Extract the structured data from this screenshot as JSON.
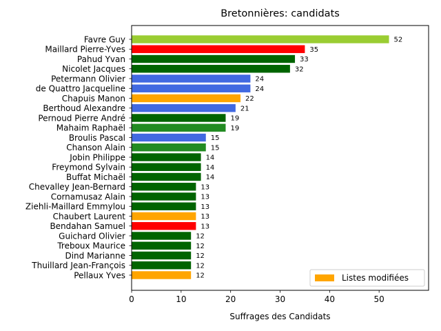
{
  "chart_data": {
    "type": "bar",
    "orientation": "horizontal",
    "title": "Bretonnières: candidats",
    "xlabel": "Suffrages des Candidats",
    "ylabel": "",
    "xlim": [
      0,
      60
    ],
    "xticks": [
      "0",
      "10",
      "20",
      "30",
      "40",
      "50"
    ],
    "xtick_values": [
      0,
      10,
      20,
      30,
      40,
      50
    ],
    "grid": false,
    "legend": {
      "position": "bottom-right",
      "entries": [
        {
          "label": "Listes modifiées",
          "color": "#ffa500"
        }
      ]
    },
    "categories": [
      "Favre Guy",
      "Maillard Pierre-Yves",
      "Pahud Yvan",
      "Nicolet Jacques",
      "Petermann Olivier",
      "de Quattro Jacqueline",
      "Chapuis Manon",
      "Berthoud Alexandre",
      "Pernoud Pierre André",
      "Mahaim Raphaël",
      "Broulis Pascal",
      "Chanson Alain",
      "Jobin Philippe",
      "Freymond Sylvain",
      "Buffat Michaël",
      "Chevalley Jean-Bernard",
      "Cornamusaz Alain",
      "Ziehli-Maillard Emmylou",
      "Chaubert Laurent",
      "Bendahan Samuel",
      "Guichard Olivier",
      "Treboux Maurice",
      "Dind Marianne",
      "Thuillard Jean-François",
      "Pellaux Yves"
    ],
    "values": [
      52,
      35,
      33,
      32,
      24,
      24,
      22,
      21,
      19,
      19,
      15,
      15,
      14,
      14,
      14,
      13,
      13,
      13,
      13,
      13,
      12,
      12,
      12,
      12,
      12
    ],
    "value_labels": [
      "52",
      "35",
      "33",
      "32",
      "24",
      "24",
      "22",
      "21",
      "19",
      "19",
      "15",
      "15",
      "14",
      "14",
      "14",
      "13",
      "13",
      "13",
      "13",
      "13",
      "12",
      "12",
      "12",
      "12",
      "12"
    ],
    "colors": [
      "#9acd32",
      "#ff0000",
      "#006400",
      "#006400",
      "#4169e1",
      "#4169e1",
      "#ffa500",
      "#4169e1",
      "#006400",
      "#228b22",
      "#4169e1",
      "#228b22",
      "#006400",
      "#006400",
      "#006400",
      "#006400",
      "#006400",
      "#006400",
      "#ffa500",
      "#ff0000",
      "#006400",
      "#006400",
      "#006400",
      "#006400",
      "#ffa500"
    ]
  }
}
